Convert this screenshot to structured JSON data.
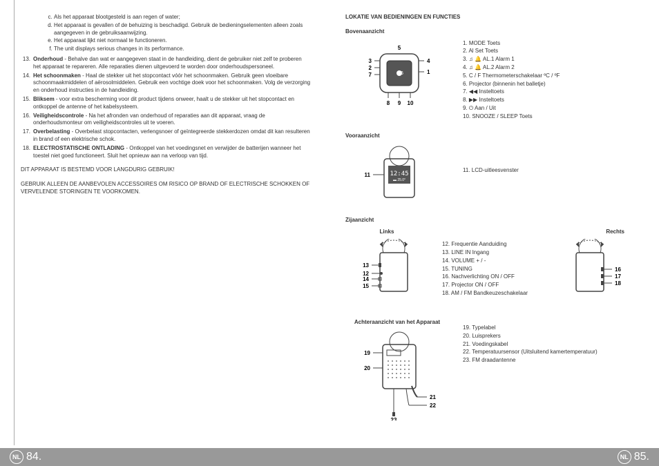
{
  "left": {
    "lettered": [
      "Als het apparaat blootgesteld is aan regen of water;",
      "Het apparaat is gevallen of de behuizing is beschadigd. Gebruik de bedieningselementen alleen zoals aangegeven in de gebruiksaanwijzing.",
      "Het apparaat lijkt niet normaal te functioneren.",
      "The unit displays serious changes in its performance."
    ],
    "numbered": [
      {
        "n": "13.",
        "t": "<b>Onderhoud</b> - Behalve dan wat er aangegeven staat in de handleiding, dient de gebruiker niet zelf te proberen het apparaat te repareren.  Alle reparaties dienen uitgevoerd te worden door onderhoudspersoneel."
      },
      {
        "n": "14.",
        "t": "<b>Het schoonmaken</b> - Haal de stekker uit het stopcontact vóór het schoonmaken. Gebruik geen vloeibare schoonmaakmiddelen of aërosolmiddelen. Gebruik een vochtige doek voor het schoonmaken. Volg de verzorging en onderhoud instructies in de handleiding."
      },
      {
        "n": "15.",
        "t": "<b>Bliksem</b> - voor extra bescherming voor dit product tijdens onweer, haalt u de stekker uit het stopcontact en ontkoppel de antenne of het kabelsysteem."
      },
      {
        "n": "16.",
        "t": "<b>Veiligheidscontrole</b> - Na het afronden van onderhoud of reparaties aan dit apparaat, vraag de onderhoudsmonteur om veiligheidscontroles uit te voeren."
      },
      {
        "n": "17.",
        "t": "<b>Overbelasting</b> - Overbelast stopcontacten, verlengsnoer of geïntegreerde stekkerdozen omdat dit kan resulteren in brand of een elektrische schok."
      },
      {
        "n": "18.",
        "t": "<b>ELECTROSTATISCHE ONTLADING</b> - Ontkoppel van het voedingsnet en verwijder de batterijen wanneer het toestel niet goed functioneert. Sluit het opnieuw aan na verloop van tijd."
      }
    ],
    "caps1": "DIT APPARAAT IS BESTEMD VOOR LANGDURIG GEBRUIK!",
    "caps2": "GEBRUIK ALLEEN DE AANBEVOLEN ACCESSOIRES OM RISICO OP BRAND OF ELECTRISCHE SCHOKKEN OF VERVELENDE STORINGEN TE VOORKOMEN."
  },
  "right": {
    "title": "LOKATIE VAN BEDIENINGEN EN FUNCTIES",
    "top": {
      "heading": "Bovenaanzicht",
      "labels": {
        "l1": "5",
        "l2": "3",
        "l3": "2",
        "l4": "7",
        "l5": "4",
        "l6": "1",
        "l7": "6",
        "l8": "8",
        "l9": "9",
        "l10": "10"
      },
      "controls": [
        "1.  MODE Toets",
        "2.  Al Set Toets",
        "3.  ♫ 🔔 AL.1 Alarm 1",
        "4.  ♫ 🔔 AL.2 Alarm 2",
        "5.  C / F Thermometerschakelaar ºC / ºF",
        "6.  Projector (binnenin het balletje)",
        "7.  ◀◀ Insteltoets",
        "8.  ▶▶ Insteltoets",
        "9.  ⏻ Aan / Uit",
        "10. SNOOZE / SLEEP Toets"
      ]
    },
    "front": {
      "heading": "Vooraanzicht",
      "label11": "11",
      "controls": [
        "11. LCD-uitleesvenster"
      ]
    },
    "side": {
      "heading": "Zijaanzicht",
      "leftLabel": "Links",
      "rightLabel": "Rechts",
      "leftNums": [
        "13",
        "12",
        "14",
        "15"
      ],
      "rightNums": [
        "16",
        "17",
        "18"
      ],
      "controls": [
        "12. Frequentie Aanduiding",
        "13. LINE IN Ingang",
        "14. VOLUME + / -",
        "15. TUNING",
        "16. Nachverlichting ON / OFF",
        "17. Projector ON / OFF",
        "18. AM / FM Bandkeuzeschakelaar"
      ]
    },
    "back": {
      "heading": "Achteraanzicht van het Apparaat",
      "nums": {
        "n19": "19",
        "n20": "20",
        "n21": "21",
        "n22": "22",
        "n23": "23"
      },
      "controls": [
        "19. Typelabel",
        "20. Luisprekers",
        "21. Voedingskabel",
        "22. Temperatuursensor (Uitsluitend kamertemperatuur)",
        "23. FM draadantenne"
      ]
    }
  },
  "footer": {
    "left": "84.",
    "right": "85.",
    "nl": "NL"
  }
}
